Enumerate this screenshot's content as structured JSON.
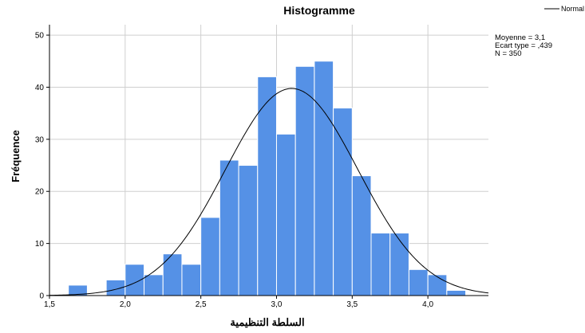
{
  "chart_data": {
    "type": "bar",
    "title": "Histogramme",
    "xlabel": "السلطة التنظيمية",
    "ylabel": "Fréquence",
    "xlim": [
      1.5,
      4.4
    ],
    "ylim": [
      0,
      52
    ],
    "x_ticks": [
      "1,5",
      "2,0",
      "2,5",
      "3,0",
      "3,5",
      "4,0"
    ],
    "x_tick_values": [
      1.5,
      2.0,
      2.5,
      3.0,
      3.5,
      4.0
    ],
    "y_ticks": [
      "0",
      "10",
      "20",
      "30",
      "40",
      "50"
    ],
    "y_tick_values": [
      0,
      10,
      20,
      30,
      40,
      50
    ],
    "grid": true,
    "bar_color": "#5591e6",
    "bins": [
      {
        "start": 1.625,
        "end": 1.75,
        "value": 2
      },
      {
        "start": 1.875,
        "end": 2.0,
        "value": 3
      },
      {
        "start": 2.0,
        "end": 2.125,
        "value": 6
      },
      {
        "start": 2.125,
        "end": 2.25,
        "value": 4
      },
      {
        "start": 2.25,
        "end": 2.375,
        "value": 8
      },
      {
        "start": 2.375,
        "end": 2.5,
        "value": 6
      },
      {
        "start": 2.5,
        "end": 2.625,
        "value": 15
      },
      {
        "start": 2.625,
        "end": 2.75,
        "value": 26
      },
      {
        "start": 2.75,
        "end": 2.875,
        "value": 25
      },
      {
        "start": 2.875,
        "end": 3.0,
        "value": 42
      },
      {
        "start": 3.0,
        "end": 3.125,
        "value": 31
      },
      {
        "start": 3.125,
        "end": 3.25,
        "value": 44
      },
      {
        "start": 3.25,
        "end": 3.375,
        "value": 45
      },
      {
        "start": 3.375,
        "end": 3.5,
        "value": 36
      },
      {
        "start": 3.5,
        "end": 3.625,
        "value": 23
      },
      {
        "start": 3.625,
        "end": 3.75,
        "value": 12
      },
      {
        "start": 3.75,
        "end": 3.875,
        "value": 12
      },
      {
        "start": 3.875,
        "end": 4.0,
        "value": 5
      },
      {
        "start": 4.0,
        "end": 4.125,
        "value": 4
      },
      {
        "start": 4.125,
        "end": 4.25,
        "value": 1
      }
    ],
    "normal_curve": {
      "mean": 3.1,
      "sd": 0.439,
      "n": 350,
      "bin_width": 0.125,
      "color": "#000000"
    },
    "legend": {
      "entries": [
        "Normal"
      ],
      "position": "top-right"
    },
    "stats": {
      "mean": "Moyenne = 3,1",
      "sd": "Ecart type = ,439",
      "n": "N = 350"
    }
  }
}
